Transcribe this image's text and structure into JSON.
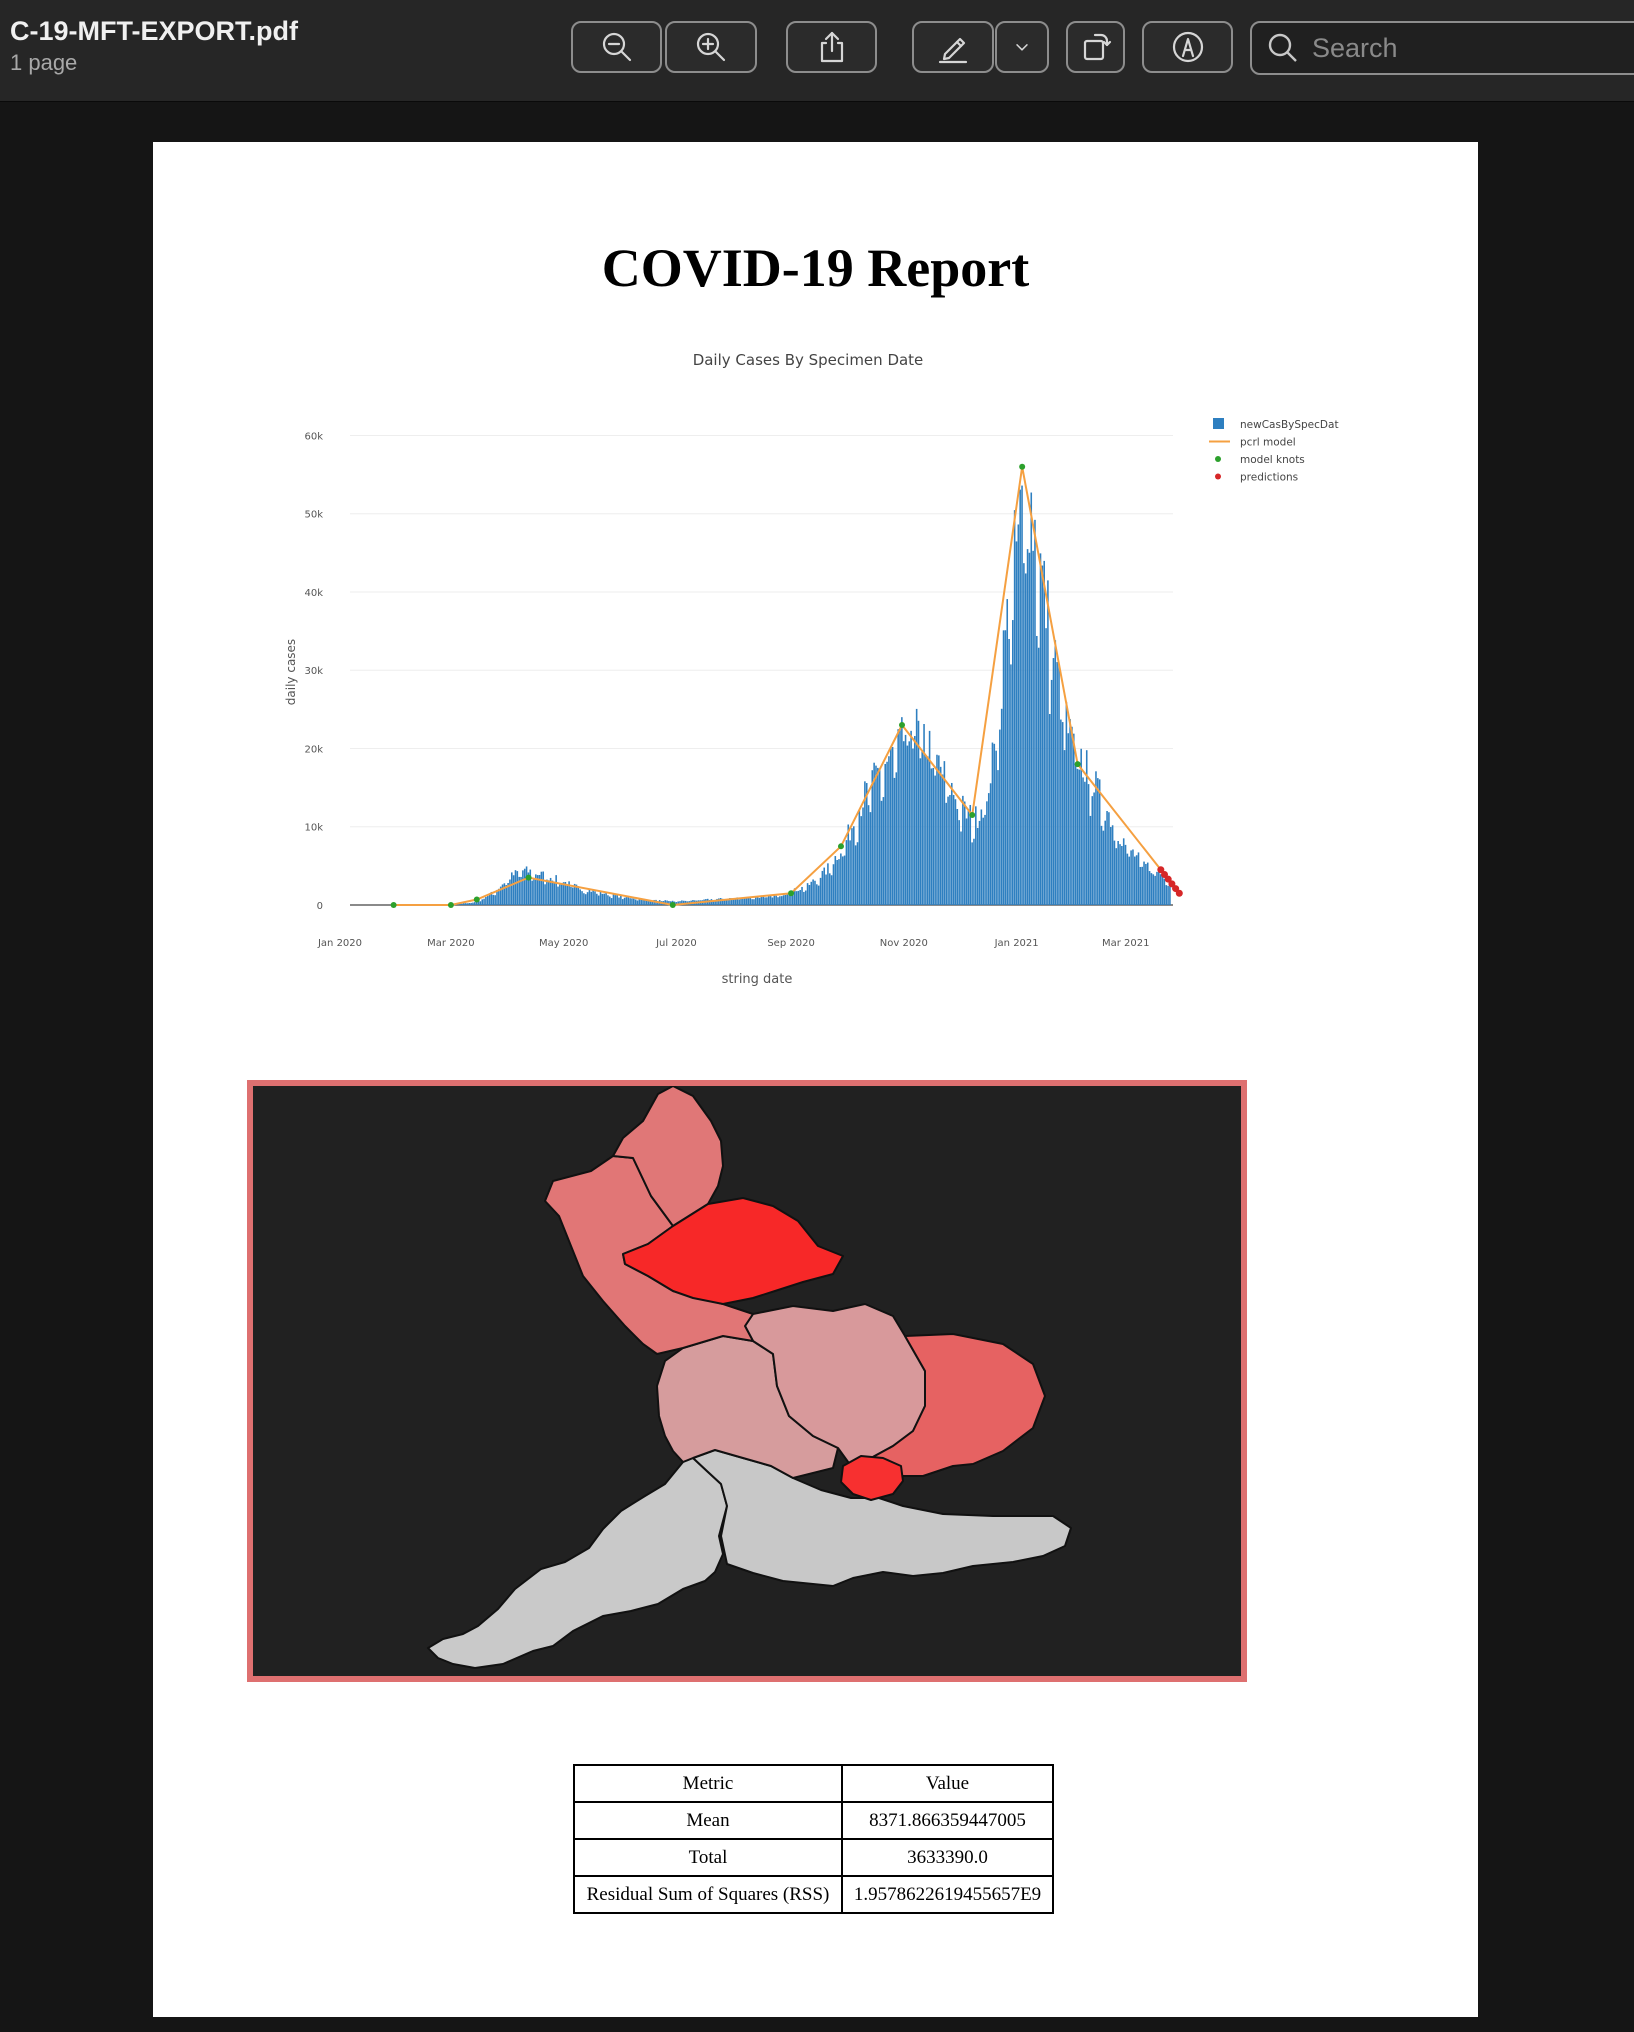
{
  "window": {
    "title": "C-19-MFT-EXPORT.pdf",
    "page_count": "1 page"
  },
  "toolbar": {
    "buttons": [
      {
        "name": "zoom-out",
        "icon": "zoom-out-icon"
      },
      {
        "name": "zoom-in",
        "icon": "zoom-in-icon"
      },
      {
        "name": "share",
        "icon": "share-icon"
      },
      {
        "name": "markup",
        "icon": "pencil-icon"
      },
      {
        "name": "markup-menu",
        "icon": "chevron-down-icon"
      },
      {
        "name": "rotate",
        "icon": "rotate-icon"
      },
      {
        "name": "annotate",
        "icon": "pen-circle-icon"
      }
    ],
    "search": {
      "placeholder": "Search",
      "value": ""
    }
  },
  "report": {
    "title": "COVID-19 Report"
  },
  "chart_data": {
    "type": "bar",
    "title": "Daily Cases By Specimen Date",
    "xlabel": "string date",
    "ylabel": "daily cases",
    "ylim": [
      0,
      63000
    ],
    "x_ticks": [
      "Jan 2020",
      "Mar 2020",
      "May 2020",
      "Jul 2020",
      "Sep 2020",
      "Nov 2020",
      "Jan 2021",
      "Mar 2021"
    ],
    "y_ticks": [
      "0",
      "10k",
      "20k",
      "30k",
      "40k",
      "50k",
      "60k"
    ],
    "y_tick_values": [
      0,
      10000,
      20000,
      30000,
      40000,
      50000,
      60000
    ],
    "grid": true,
    "legend_placement": "top-right",
    "legend": [
      "newCasBySpecDat",
      "pcrl model",
      "model knots",
      "predictions"
    ],
    "colors": {
      "bars": "#2e7fc0",
      "model": "#f5a041",
      "knots": "#2ca02c",
      "predictions": "#d62728"
    },
    "series": [
      {
        "name": "newCasBySpecDat",
        "kind": "bar",
        "x_start": "2020-01-30",
        "x_end": "2021-03-25",
        "profile_x": [
          "2020-01-30",
          "2020-03-01",
          "2020-03-15",
          "2020-03-25",
          "2020-04-01",
          "2020-04-08",
          "2020-04-15",
          "2020-04-25",
          "2020-05-10",
          "2020-06-01",
          "2020-06-20",
          "2020-07-01",
          "2020-08-01",
          "2020-08-25",
          "2020-09-10",
          "2020-09-20",
          "2020-09-30",
          "2020-10-10",
          "2020-10-20",
          "2020-10-30",
          "2020-11-05",
          "2020-11-15",
          "2020-11-25",
          "2020-12-05",
          "2020-12-10",
          "2020-12-15",
          "2020-12-20",
          "2020-12-25",
          "2020-12-30",
          "2021-01-04",
          "2021-01-08",
          "2021-01-12",
          "2021-01-18",
          "2021-01-24",
          "2021-01-30",
          "2021-02-10",
          "2021-02-20",
          "2021-03-01",
          "2021-03-10",
          "2021-03-20",
          "2021-03-25"
        ],
        "profile_y": [
          5,
          20,
          400,
          1800,
          3500,
          4600,
          4300,
          3600,
          2200,
          1100,
          600,
          500,
          900,
          1200,
          2500,
          4500,
          8000,
          14000,
          18000,
          21000,
          24000,
          21000,
          16000,
          12000,
          11500,
          14000,
          20000,
          33000,
          44000,
          52000,
          54000,
          48000,
          38000,
          29000,
          22000,
          17000,
          12000,
          8000,
          5500,
          4200,
          3500
        ]
      },
      {
        "name": "pcrl model",
        "kind": "line",
        "x": [
          "2020-01-30",
          "2020-03-01",
          "2020-03-15",
          "2020-04-12",
          "2020-06-29",
          "2020-09-01",
          "2020-09-28",
          "2020-10-31",
          "2020-12-08",
          "2021-01-04",
          "2021-02-03",
          "2021-03-20"
        ],
        "y": [
          0,
          0,
          700,
          3500,
          0,
          1500,
          7500,
          23000,
          11500,
          56000,
          18000,
          4500
        ]
      },
      {
        "name": "model knots",
        "kind": "scatter",
        "x": [
          "2020-01-30",
          "2020-03-01",
          "2020-03-15",
          "2020-04-12",
          "2020-06-29",
          "2020-09-01",
          "2020-09-28",
          "2020-10-31",
          "2020-12-08",
          "2021-01-04",
          "2021-02-03",
          "2021-03-20"
        ],
        "y": [
          0,
          0,
          700,
          3500,
          0,
          1500,
          7500,
          23000,
          11500,
          56000,
          18000,
          4500
        ]
      },
      {
        "name": "predictions",
        "kind": "scatter",
        "x": [
          "2021-03-20",
          "2021-03-22",
          "2021-03-24",
          "2021-03-26",
          "2021-03-28",
          "2021-03-30"
        ],
        "y": [
          4500,
          3900,
          3300,
          2700,
          2100,
          1500
        ]
      }
    ]
  },
  "map": {
    "border_color": "#de7070",
    "background": "#212121",
    "regions": [
      {
        "name": "north-east",
        "color": "#e07777"
      },
      {
        "name": "north-west",
        "color": "#e17676"
      },
      {
        "name": "yorkshire",
        "color": "#f72828"
      },
      {
        "name": "east-midlands",
        "color": "#d8999b"
      },
      {
        "name": "west-midlands",
        "color": "#d69c9d"
      },
      {
        "name": "east-of-england",
        "color": "#e66262"
      },
      {
        "name": "london",
        "color": "#f73030"
      },
      {
        "name": "south-west",
        "color": "#c9c9c9"
      },
      {
        "name": "south-east",
        "color": "#c8c8c8"
      }
    ]
  },
  "metrics_table": {
    "headers": [
      "Metric",
      "Value"
    ],
    "rows": [
      [
        "Mean",
        "8371.866359447005"
      ],
      [
        "Total",
        "3633390.0"
      ],
      [
        "Residual Sum of Squares (RSS)",
        "1.9578622619455657E9"
      ]
    ]
  }
}
